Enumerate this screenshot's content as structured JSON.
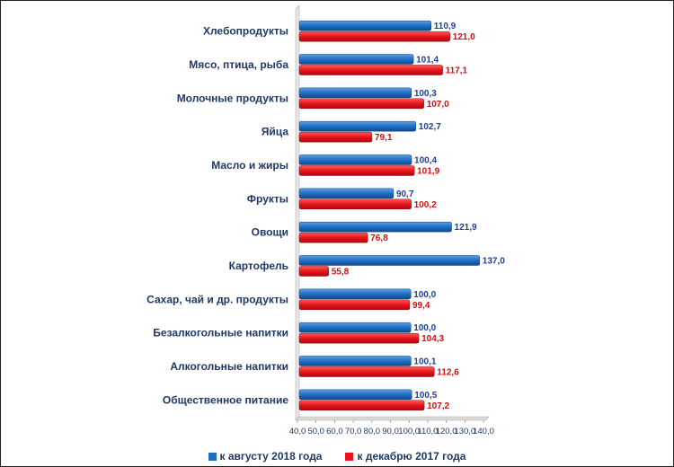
{
  "chart_data": {
    "type": "bar",
    "orientation": "horizontal",
    "categories": [
      "Хлебопродукты",
      "Мясо, птица, рыба",
      "Молочные продукты",
      "Яйца",
      "Масло и жиры",
      "Фрукты",
      "Овощи",
      "Картофель",
      "Сахар, чай и др. продукты",
      "Безалкогольные напитки",
      "Алкогольные напитки",
      "Общественное питание"
    ],
    "series": [
      {
        "name": "к августу 2018 года",
        "color": "#1f6fc5",
        "values": [
          110.9,
          101.4,
          100.3,
          102.7,
          100.4,
          90.7,
          121.9,
          137.0,
          100.0,
          100.0,
          100.1,
          100.5
        ],
        "labels": [
          "110,9",
          "101,4",
          "100,3",
          "102,7",
          "100,4",
          "90,7",
          "121,9",
          "137,0",
          "100,0",
          "100,0",
          "100,1",
          "100,5"
        ]
      },
      {
        "name": "к декабрю 2017 года",
        "color": "#e8141b",
        "values": [
          121.0,
          117.1,
          107.0,
          79.1,
          101.9,
          100.2,
          76.8,
          55.8,
          99.4,
          104.3,
          112.6,
          107.2
        ],
        "labels": [
          "121,0",
          "117,1",
          "107,0",
          "79,1",
          "101,9",
          "100,2",
          "76,8",
          "55,8",
          "99,4",
          "104,3",
          "112,6",
          "107,2"
        ]
      }
    ],
    "xlim": [
      40,
      140
    ],
    "ticks": [
      40,
      50,
      60,
      70,
      80,
      90,
      100,
      110,
      120,
      130,
      140
    ],
    "tick_labels": [
      "40,0",
      "50,0",
      "60,0",
      "70,0",
      "80,0",
      "90,0",
      "100,0",
      "110,0",
      "120,0",
      "130,0",
      "140,0"
    ],
    "title": "",
    "xlabel": "",
    "ylabel": "",
    "grid": false,
    "legend_position": "bottom"
  }
}
